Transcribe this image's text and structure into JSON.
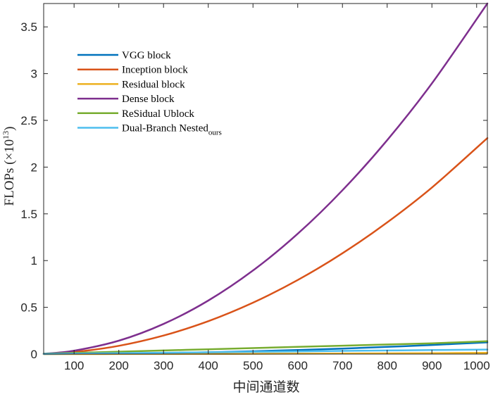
{
  "chart_data": {
    "type": "line",
    "title": "",
    "xlabel": "中间通道数",
    "ylabel": {
      "prefix": "FLOPs (×10",
      "sup": "13",
      "suffix": ")"
    },
    "xlim": [
      32,
      1024
    ],
    "ylim": [
      0,
      3.75
    ],
    "xticks": [
      100,
      200,
      300,
      400,
      500,
      600,
      700,
      800,
      900,
      1000
    ],
    "yticks": [
      0,
      0.5,
      1,
      1.5,
      2,
      2.5,
      3,
      3.5
    ],
    "grid": false,
    "legend_position": "top-left",
    "x": [
      32,
      100,
      200,
      300,
      400,
      500,
      600,
      700,
      800,
      900,
      1024
    ],
    "series": [
      {
        "name": "VGG block",
        "color": "#0072BD",
        "values": [
          0.00012,
          0.0012,
          0.0048,
          0.0108,
          0.0192,
          0.03,
          0.0432,
          0.0588,
          0.0768,
          0.0972,
          0.125
        ]
      },
      {
        "name": "Inception block",
        "color": "#D95319",
        "values": [
          0.0023,
          0.022,
          0.088,
          0.198,
          0.352,
          0.55,
          0.792,
          1.078,
          1.408,
          1.782,
          2.31
        ]
      },
      {
        "name": "Residual block",
        "color": "#EDB120",
        "values": [
          1e-05,
          0.0001,
          0.0005,
          0.0011,
          0.0019,
          0.003,
          0.0043,
          0.0059,
          0.0077,
          0.0097,
          0.0125
        ]
      },
      {
        "name": "Dense block",
        "color": "#7E2F8E",
        "values": [
          0.0037,
          0.036,
          0.143,
          0.322,
          0.572,
          0.894,
          1.287,
          1.752,
          2.288,
          2.896,
          3.75
        ]
      },
      {
        "name": "ReSidual Ublock",
        "color": "#77AC30",
        "values": [
          0.004,
          0.0128,
          0.0256,
          0.0384,
          0.0512,
          0.064,
          0.0768,
          0.0896,
          0.1024,
          0.1152,
          0.138
        ]
      },
      {
        "name": "Dual-Branch Nested",
        "name_sub": "ours",
        "color": "#4DBEEE",
        "values": [
          0.0015,
          0.0048,
          0.0096,
          0.0144,
          0.0192,
          0.024,
          0.0288,
          0.0336,
          0.0384,
          0.0432,
          0.048
        ]
      }
    ]
  }
}
